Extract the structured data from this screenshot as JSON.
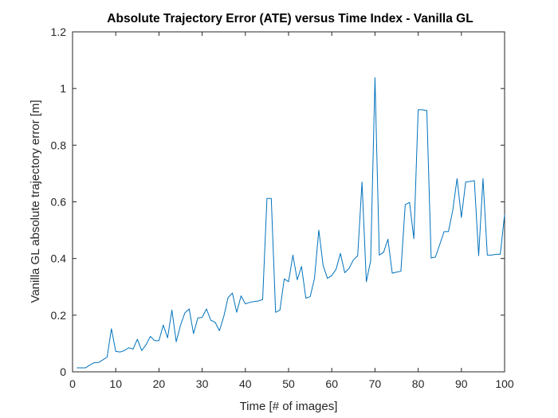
{
  "chart_data": {
    "type": "line",
    "title": "Absolute Trajectory Error (ATE) versus Time Index - Vanilla GL",
    "xlabel": "Time [# of images]",
    "ylabel": "Vanilla GL absolute trajectory error [m]",
    "xlim": [
      0,
      100
    ],
    "ylim": [
      0,
      1.2
    ],
    "xticks": [
      0,
      10,
      20,
      30,
      40,
      50,
      60,
      70,
      80,
      90,
      100
    ],
    "yticks": [
      0,
      0.2,
      0.4,
      0.6,
      0.8,
      1,
      1.2
    ],
    "grid": false,
    "series": [
      {
        "color": "#0072BD",
        "x": [
          1,
          2,
          3,
          4,
          5,
          6,
          7,
          8,
          9,
          10,
          11,
          12,
          13,
          14,
          15,
          16,
          17,
          18,
          19,
          20,
          21,
          22,
          23,
          24,
          25,
          26,
          27,
          28,
          29,
          30,
          31,
          32,
          33,
          34,
          35,
          36,
          37,
          38,
          39,
          40,
          41,
          42,
          43,
          44,
          45,
          46,
          47,
          48,
          49,
          50,
          51,
          52,
          53,
          54,
          55,
          56,
          57,
          58,
          59,
          60,
          61,
          62,
          63,
          64,
          65,
          66,
          67,
          68,
          69,
          70,
          71,
          72,
          73,
          74,
          75,
          76,
          77,
          78,
          79,
          80,
          81,
          82,
          83,
          84,
          85,
          86,
          87,
          88,
          89,
          90,
          91,
          92,
          93,
          94,
          95,
          96,
          97,
          98,
          99,
          100
        ],
        "y": [
          0.014,
          0.014,
          0.014,
          0.024,
          0.032,
          0.033,
          0.042,
          0.052,
          0.152,
          0.072,
          0.07,
          0.075,
          0.085,
          0.08,
          0.115,
          0.075,
          0.095,
          0.125,
          0.11,
          0.11,
          0.165,
          0.12,
          0.218,
          0.106,
          0.165,
          0.208,
          0.222,
          0.135,
          0.19,
          0.192,
          0.222,
          0.182,
          0.175,
          0.145,
          0.195,
          0.262,
          0.278,
          0.21,
          0.268,
          0.24,
          0.245,
          0.248,
          0.25,
          0.255,
          0.612,
          0.612,
          0.21,
          0.218,
          0.328,
          0.318,
          0.412,
          0.325,
          0.372,
          0.26,
          0.265,
          0.33,
          0.5,
          0.375,
          0.33,
          0.34,
          0.362,
          0.418,
          0.35,
          0.365,
          0.395,
          0.41,
          0.67,
          0.318,
          0.392,
          1.038,
          0.412,
          0.422,
          0.468,
          0.348,
          0.352,
          0.355,
          0.59,
          0.598,
          0.47,
          0.925,
          0.925,
          0.922,
          0.402,
          0.405,
          0.45,
          0.495,
          0.495,
          0.57,
          0.682,
          0.545,
          0.67,
          0.672,
          0.675,
          0.41,
          0.682,
          0.412,
          0.412,
          0.415,
          0.415,
          0.555
        ]
      }
    ]
  }
}
